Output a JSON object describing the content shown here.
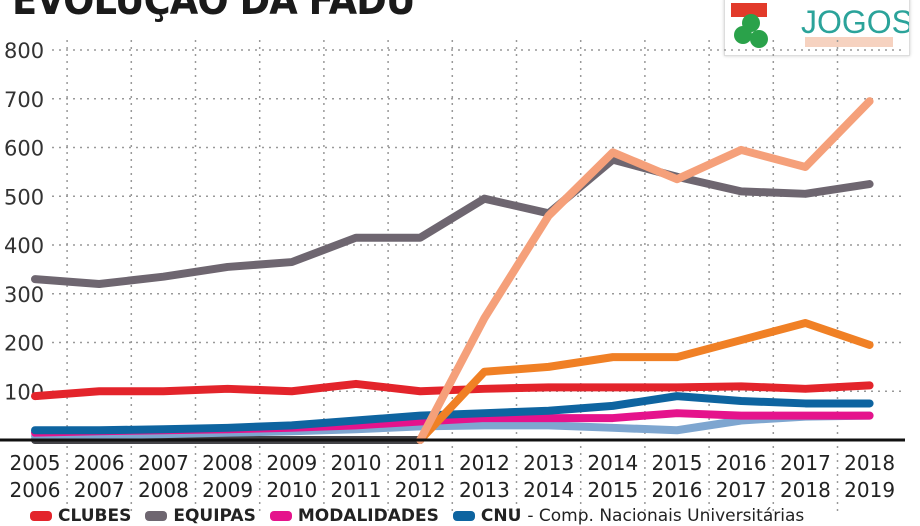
{
  "title": "EVOLUÇÃO DA FADU",
  "logo": {
    "text": "JOGOS",
    "colors": {
      "green": "#2aa24a",
      "red": "#e23a2a",
      "teal": "#2ba39a"
    }
  },
  "legend": [
    {
      "label": "CLUBES",
      "color": "#e3242b"
    },
    {
      "label": "EQUIPAS",
      "color": "#6e6670"
    },
    {
      "label": "MODALIDADES",
      "color": "#e5138c"
    },
    {
      "label": "CNU",
      "color": "#0e64a0",
      "note": "- Comp. Nacionais Universitárias"
    }
  ],
  "chart_data": {
    "type": "line",
    "title": "EVOLUÇÃO DA FADU",
    "ylim": [
      0,
      800
    ],
    "yticks": [
      100,
      200,
      300,
      400,
      500,
      600,
      700,
      800
    ],
    "grid": true,
    "legend_position": "bottom",
    "categories": [
      [
        "2005",
        "2006"
      ],
      [
        "2006",
        "2007"
      ],
      [
        "2007",
        "2008"
      ],
      [
        "2008",
        "2009"
      ],
      [
        "2009",
        "2010"
      ],
      [
        "2010",
        "2011"
      ],
      [
        "2011",
        "2012"
      ],
      [
        "2012",
        "2013"
      ],
      [
        "2013",
        "2014"
      ],
      [
        "2014",
        "2015"
      ],
      [
        "2015",
        "2016"
      ],
      [
        "2016",
        "2017"
      ],
      [
        "2017",
        "2018"
      ],
      [
        "2018",
        "2019"
      ]
    ],
    "series": [
      {
        "color": "#444448",
        "values": [
          0,
          0,
          0,
          0,
          0,
          0,
          0,
          null,
          null,
          null,
          null,
          null,
          null,
          null
        ]
      },
      {
        "color": "#7ea6d0",
        "values": [
          8,
          10,
          12,
          15,
          18,
          22,
          28,
          30,
          30,
          25,
          20,
          40,
          48,
          50
        ]
      },
      {
        "name": "MODALIDADES",
        "color": "#e5138c",
        "values": [
          15,
          18,
          20,
          22,
          25,
          30,
          38,
          45,
          45,
          45,
          55,
          50,
          50,
          50
        ]
      },
      {
        "name": "CNU",
        "color": "#0e64a0",
        "values": [
          20,
          20,
          22,
          25,
          30,
          40,
          50,
          55,
          60,
          70,
          90,
          80,
          75,
          75
        ]
      },
      {
        "name": "CLUBES",
        "color": "#e3242b",
        "values": [
          90,
          100,
          100,
          105,
          100,
          115,
          100,
          105,
          108,
          108,
          108,
          110,
          105,
          112
        ]
      },
      {
        "color": "#f08025",
        "values": [
          null,
          null,
          null,
          null,
          null,
          null,
          0,
          140,
          150,
          170,
          170,
          205,
          240,
          195
        ]
      },
      {
        "name": "EQUIPAS",
        "color": "#6e6670",
        "values": [
          330,
          320,
          335,
          355,
          365,
          415,
          415,
          495,
          465,
          575,
          540,
          510,
          505,
          525
        ]
      },
      {
        "color": "#f5a07a",
        "values": [
          null,
          null,
          null,
          null,
          null,
          null,
          0,
          250,
          460,
          590,
          535,
          595,
          560,
          695
        ]
      }
    ]
  }
}
